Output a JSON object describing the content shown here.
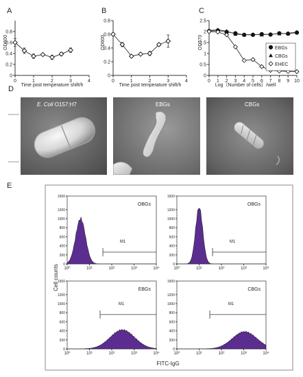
{
  "panels": {
    "A": {
      "letter": "A",
      "xlabel": "Time post temperature shift/h",
      "ylabel": "OD600"
    },
    "B": {
      "letter": "B",
      "xlabel": "Time post temperature shift/h",
      "ylabel": "OD600"
    },
    "C": {
      "letter": "C",
      "xlabel": "Log（Number of cells）/well",
      "ylabel": "OD570"
    },
    "D": {
      "letter": "D",
      "sem1_label": "E. Coli",
      "sem1_strain": "O157:H7",
      "sem2_label": "EBGs",
      "sem3_label": "CBGs"
    },
    "E": {
      "letter": "E",
      "xlabel": "FITC-IgG",
      "ylabel": "Cell counts"
    }
  },
  "colors": {
    "histogram": "#5b2d90",
    "line": "#333333"
  },
  "chart_data": [
    {
      "id": "A",
      "type": "line",
      "xlabel": "Time post temperature shift/h",
      "ylabel": "OD600",
      "xlim": [
        0,
        4
      ],
      "ylim": [
        0,
        1.0
      ],
      "xticks": [
        0,
        1,
        2,
        3,
        4
      ],
      "yticks": [
        0,
        0.2,
        0.4,
        0.6,
        0.8
      ],
      "series": [
        {
          "x": [
            0,
            0.5,
            1,
            1.5,
            2,
            2.5,
            3
          ],
          "y": [
            0.6,
            0.45,
            0.35,
            0.38,
            0.33,
            0.39,
            0.46
          ],
          "err": [
            0.07,
            0.05,
            0.04,
            0.02,
            0.04,
            0.03,
            0.04
          ]
        }
      ]
    },
    {
      "id": "B",
      "type": "line",
      "xlabel": "Time post temperature shift/h",
      "ylabel": "OD600",
      "xlim": [
        0,
        4
      ],
      "ylim": [
        0,
        0.8
      ],
      "xticks": [
        0,
        1,
        2,
        3,
        4
      ],
      "yticks": [
        0,
        0.2,
        0.4,
        0.6,
        0.8
      ],
      "series": [
        {
          "x": [
            0,
            0.5,
            1,
            1.5,
            2,
            2.5,
            3
          ],
          "y": [
            0.6,
            0.45,
            0.28,
            0.31,
            0.32,
            0.45,
            0.5
          ],
          "err": [
            0.02,
            0.03,
            0.01,
            0.01,
            0.03,
            0.02,
            0.09
          ]
        }
      ]
    },
    {
      "id": "C",
      "type": "line",
      "xlabel": "Log（Number of cells）/well",
      "ylabel": "OD570",
      "xlim": [
        0,
        10
      ],
      "ylim": [
        0,
        2.5
      ],
      "xticks": [
        0,
        1,
        2,
        3,
        4,
        5,
        6,
        7,
        8,
        9,
        10
      ],
      "yticks": [
        0,
        0.5,
        1.0,
        1.5,
        2.0,
        2.5
      ],
      "series": [
        {
          "name": "EBGs",
          "marker": "circle-filled",
          "x": [
            0,
            1,
            2,
            3,
            4,
            5,
            6,
            7,
            8,
            9,
            10
          ],
          "y": [
            2.02,
            2.05,
            1.98,
            1.92,
            1.85,
            1.85,
            1.88,
            1.86,
            1.92,
            1.9,
            1.95
          ]
        },
        {
          "name": "CBGs",
          "marker": "triangle-filled",
          "x": [
            0,
            1,
            2,
            3,
            4,
            5,
            6,
            7,
            8,
            9,
            10
          ],
          "y": [
            2.05,
            2.08,
            2.02,
            1.88,
            1.85,
            1.87,
            1.85,
            1.88,
            1.9,
            1.92,
            1.98
          ]
        },
        {
          "name": "EHEC",
          "marker": "diamond-open",
          "x": [
            0,
            1,
            2,
            3,
            4,
            5,
            6,
            7,
            8,
            9,
            10
          ],
          "y": [
            2.0,
            1.98,
            1.85,
            1.3,
            0.68,
            0.72,
            0.4,
            0.23,
            0.2,
            0.18,
            0.17
          ]
        }
      ],
      "legend": "right"
    },
    {
      "id": "E",
      "type": "area",
      "xlabel": "FITC-IgG",
      "ylabel": "Cell counts",
      "xscale": "log",
      "xlim": [
        1,
        10000
      ],
      "ylim": [
        0,
        1500
      ],
      "yticks": [
        0,
        200,
        400,
        600,
        800,
        1000,
        1200,
        1500
      ],
      "xtick_labels": [
        "10⁰",
        "10¹",
        "10²",
        "10³",
        "10⁴"
      ],
      "gate_label": "M1",
      "histograms": [
        {
          "name": "OBGs",
          "peak_x": 4,
          "peak_y": 1000,
          "width_decades": 0.22,
          "gate": [
            40,
            10000
          ]
        },
        {
          "name": "OBGs",
          "peak_x": 10,
          "peak_y": 1250,
          "width_decades": 0.16,
          "gate": [
            40,
            10000
          ]
        },
        {
          "name": "EBGs",
          "peak_x": 300,
          "peak_y": 420,
          "width_decades": 0.55,
          "gate": [
            30,
            10000
          ]
        },
        {
          "name": "CBGs",
          "peak_x": 1100,
          "peak_y": 380,
          "width_decades": 0.55,
          "gate": [
            30,
            10000
          ]
        }
      ]
    }
  ]
}
